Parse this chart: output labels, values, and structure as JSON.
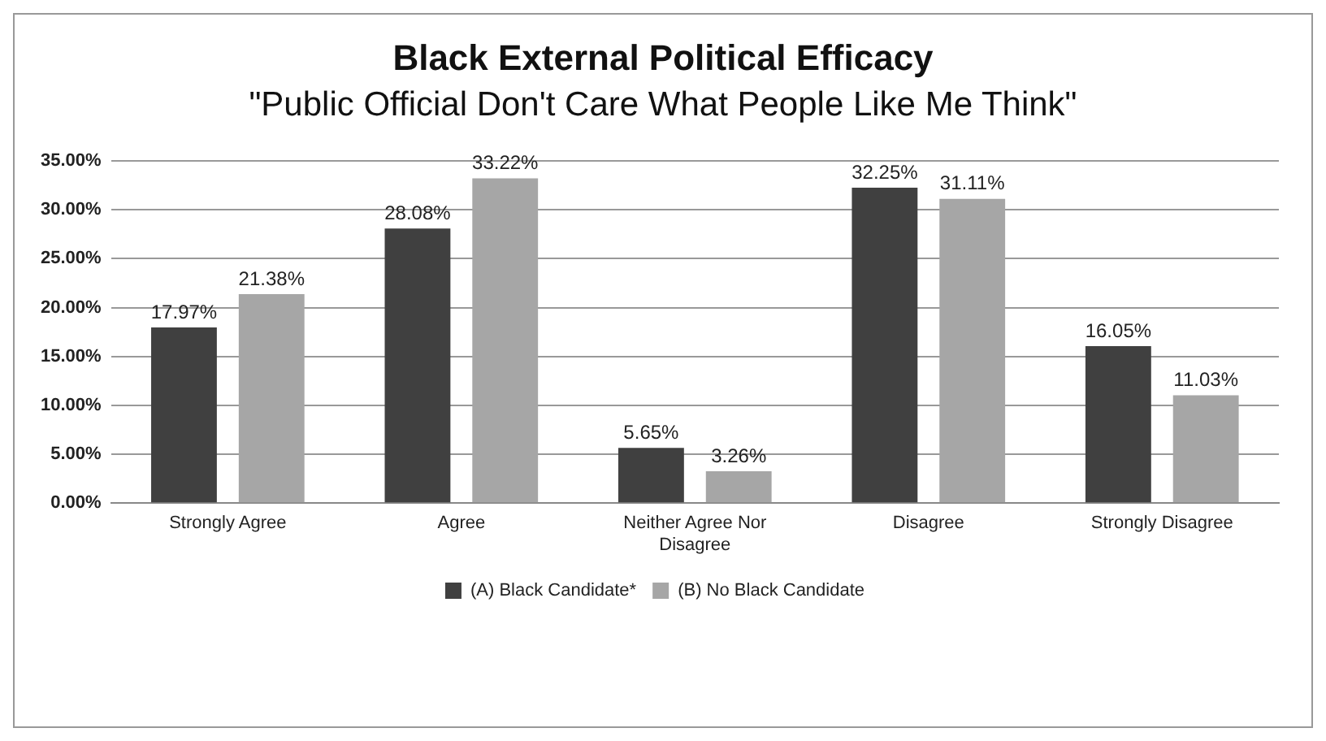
{
  "chart_data": {
    "type": "bar",
    "title": "Black External Political Efficacy",
    "subtitle": "\"Public Official Don't Care What People Like Me Think\"",
    "categories": [
      "Strongly Agree",
      "Agree",
      "Neither Agree Nor Disagree",
      "Disagree",
      "Strongly Disagree"
    ],
    "series": [
      {
        "name": "(A) Black Candidate*",
        "color": "#404040",
        "values": [
          17.97,
          28.08,
          5.65,
          32.25,
          16.05
        ],
        "value_labels": [
          "17.97%",
          "28.08%",
          "5.65%",
          "32.25%",
          "16.05%"
        ]
      },
      {
        "name": "(B) No Black Candidate",
        "color": "#a6a6a6",
        "values": [
          21.38,
          33.22,
          3.26,
          31.11,
          11.03
        ],
        "value_labels": [
          "21.38%",
          "33.22%",
          "3.26%",
          "31.11%",
          "11.03%"
        ]
      }
    ],
    "ylim": [
      0,
      35
    ],
    "yticks": [
      {
        "value": 0,
        "label": "0.00%"
      },
      {
        "value": 5,
        "label": "5.00%"
      },
      {
        "value": 10,
        "label": "10.00%"
      },
      {
        "value": 15,
        "label": "15.00%"
      },
      {
        "value": 20,
        "label": "20.00%"
      },
      {
        "value": 25,
        "label": "25.00%"
      },
      {
        "value": 30,
        "label": "30.00%"
      },
      {
        "value": 35,
        "label": "35.00%"
      }
    ],
    "grid": "y",
    "legend": "bottom"
  }
}
